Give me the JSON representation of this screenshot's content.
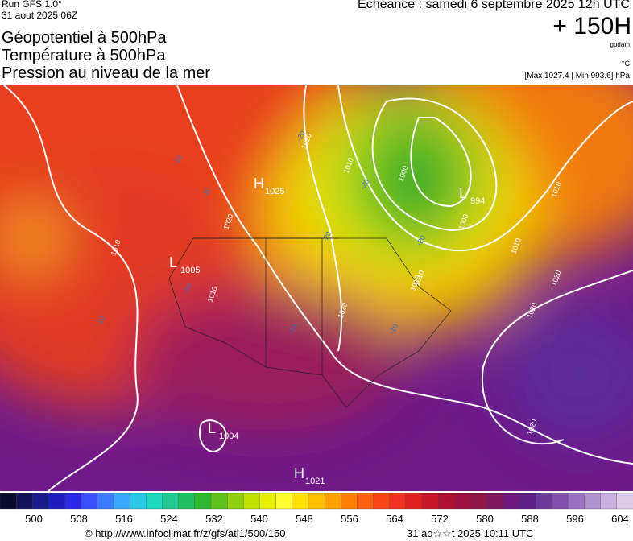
{
  "header": {
    "run": "Run GFS 1.0°",
    "run_date": "31 aout 2025 06Z",
    "forecast": "Echéance : samedi 6 septembre 2025 12h UTC",
    "lead": "+ 150H",
    "titles": [
      "Géopotentiel à 500hPa",
      "Température à 500hPa",
      "Pression au niveau de la mer"
    ],
    "unit_geopotential": "gpdam",
    "unit_temperature": "°C",
    "pressure_range": "[Max 1027.4 | Min 993.6] hPa"
  },
  "map": {
    "centers": [
      {
        "letter": "H",
        "value": "1025"
      },
      {
        "letter": "L",
        "value": "1005"
      },
      {
        "letter": "L",
        "value": "994"
      },
      {
        "letter": "L",
        "value": "1004"
      },
      {
        "letter": "H",
        "value": "1021"
      }
    ],
    "isobar_labels": [
      "1020",
      "1010",
      "1010",
      "1020",
      "1010",
      "1000",
      "1000",
      "1010",
      "1010",
      "1020",
      "1020",
      "1020",
      "1010",
      "1020",
      "1010"
    ],
    "isotherm_labels": [
      "-20",
      "-10",
      "-10",
      "-10",
      "-20",
      "-20",
      "-20",
      "-10",
      "-10",
      "-10"
    ]
  },
  "colorbar": {
    "labels": [
      "500",
      "508",
      "516",
      "524",
      "532",
      "540",
      "548",
      "556",
      "564",
      "572",
      "580",
      "588",
      "596",
      "604"
    ]
  },
  "footer": {
    "source": "© http://www.infoclimat.fr/z/gfs/atl1/500/150",
    "timestamp": "31 ao☆☆t 2025 10:11 UTC"
  }
}
